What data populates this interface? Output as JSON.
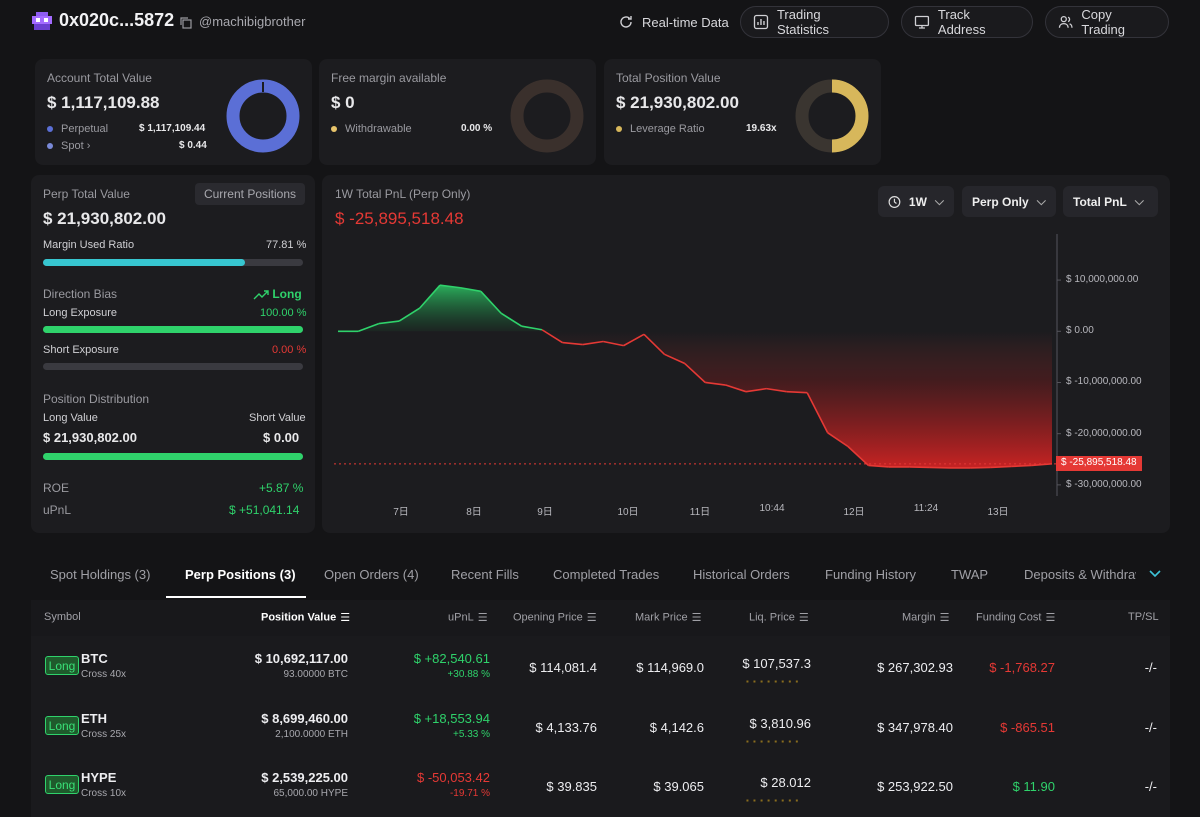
{
  "header": {
    "address": "0x020c...5872",
    "username": "@machibigbrother",
    "buttons": {
      "realtime": "Real-time Data",
      "stats": "Trading Statistics",
      "track": "Track Address",
      "copy": "Copy Trading"
    }
  },
  "summary": {
    "account": {
      "label": "Account Total Value",
      "value": "$ 1,117,109.88",
      "row1_label": "Perpetual",
      "row1_value": "$ 1,117,109.44",
      "row2_label": "Spot",
      "row2_value": "$ 0.44",
      "donut_color": "#5b6fd6",
      "donut_fill": 1.0
    },
    "margin": {
      "label": "Free margin available",
      "value": "$ 0",
      "row1_label": "Withdrawable",
      "row1_value": "0.00 %",
      "donut_color": "#e8c46b",
      "donut_fill": 0.0
    },
    "position": {
      "label": "Total Position Value",
      "value": "$ 21,930,802.00",
      "row1_label": "Leverage Ratio",
      "row1_value": "19.63x",
      "donut_color": "#d7b75b",
      "donut_fill": 0.5
    }
  },
  "perp": {
    "label": "Perp Total Value",
    "button": "Current Positions",
    "value": "$ 21,930,802.00",
    "margin_label": "Margin Used Ratio",
    "margin_value": "77.81 %",
    "margin_ratio": 0.7781,
    "direction_label": "Direction Bias",
    "direction_value": "Long",
    "long_label": "Long Exposure",
    "long_value": "100.00 %",
    "long_ratio": 1.0,
    "short_label": "Short Exposure",
    "short_value": "0.00 %",
    "short_ratio": 0.0,
    "dist_label": "Position Distribution",
    "long_value_label": "Long Value",
    "short_value_label": "Short Value",
    "long_value_amount": "$ 21,930,802.00",
    "short_value_amount": "$ 0.00",
    "dist_ratio": 1.0,
    "roe_label": "ROE",
    "roe_value": "+5.87 %",
    "upnl_label": "uPnL",
    "upnl_value": "$ +51,041.14"
  },
  "chart_panel": {
    "title": "1W Total PnL (Perp Only)",
    "value": "$ -25,895,518.48",
    "sel_period": "1W",
    "sel_scope": "Perp Only",
    "sel_metric": "Total PnL"
  },
  "chart_data": {
    "type": "area",
    "y_ticks": [
      "$ 10,000,000.00",
      "$ 0.00",
      "$ -10,000,000.00",
      "$ -20,000,000.00",
      "$ -30,000,000.00"
    ],
    "y_tick_values": [
      10000000,
      0,
      -10000000,
      -20000000,
      -30000000
    ],
    "x_ticks": [
      "7日",
      "8日",
      "9日",
      "10日",
      "11日",
      "10:44",
      "12日",
      "11:24",
      "13日"
    ],
    "last_label": "$ -25,895,518.48",
    "last_value": -25895518.48,
    "ylim": [
      -31000000,
      19000000
    ],
    "colors": {
      "positive": "#2fd26b",
      "negative": "#e53935"
    },
    "values": [
      0,
      0,
      1500000,
      2000000,
      4500000,
      9000000,
      8500000,
      7800000,
      3500000,
      1000000,
      300000,
      -2200000,
      -2600000,
      -2000000,
      -2800000,
      -600000,
      -4500000,
      -6300000,
      -10000000,
      -10500000,
      -11800000,
      -11200000,
      -11800000,
      -12000000,
      -19800000,
      -22500000,
      -26200000,
      -26500000,
      -26500000,
      -26600000,
      -26700000,
      -26700000,
      -26600000,
      -26400000,
      -26200000,
      -25895518.48
    ]
  },
  "tabs": [
    "Spot Holdings (3)",
    "Perp Positions (3)",
    "Open Orders (4)",
    "Recent Fills",
    "Completed Trades",
    "Historical Orders",
    "Funding History",
    "TWAP",
    "Deposits & Withdraw"
  ],
  "table": {
    "headers": {
      "symbol": "Symbol",
      "position_value": "Position Value",
      "upnl": "uPnL",
      "opening": "Opening Price",
      "mark": "Mark Price",
      "liq": "Liq. Price",
      "margin": "Margin",
      "funding": "Funding Cost",
      "tpsl": "TP/SL"
    },
    "rows": [
      {
        "side": "Long",
        "symbol": "BTC",
        "mode": "Cross 40x",
        "position_value": "$ 10,692,117.00",
        "size": "93.00000 BTC",
        "upnl": "$ +82,540.61",
        "upnl_pct": "+30.88 %",
        "opening": "$ 114,081.4",
        "mark": "$ 114,969.0",
        "liq": "$ 107,537.3",
        "margin": "$ 267,302.93",
        "funding": "$ -1,768.27",
        "tpsl": "-/-"
      },
      {
        "side": "Long",
        "symbol": "ETH",
        "mode": "Cross 25x",
        "position_value": "$ 8,699,460.00",
        "size": "2,100.0000 ETH",
        "upnl": "$ +18,553.94",
        "upnl_pct": "+5.33 %",
        "opening": "$ 4,133.76",
        "mark": "$ 4,142.6",
        "liq": "$ 3,810.96",
        "margin": "$ 347,978.40",
        "funding": "$ -865.51",
        "tpsl": "-/-"
      },
      {
        "side": "Long",
        "symbol": "HYPE",
        "mode": "Cross 10x",
        "position_value": "$ 2,539,225.00",
        "size": "65,000.00 HYPE",
        "upnl": "$ -50,053.42",
        "upnl_pct": "-19.71 %",
        "opening": "$ 39.835",
        "mark": "$ 39.065",
        "liq": "$ 28.012",
        "margin": "$ 253,922.50",
        "funding": "$ 11.90",
        "tpsl": "-/-"
      }
    ]
  }
}
